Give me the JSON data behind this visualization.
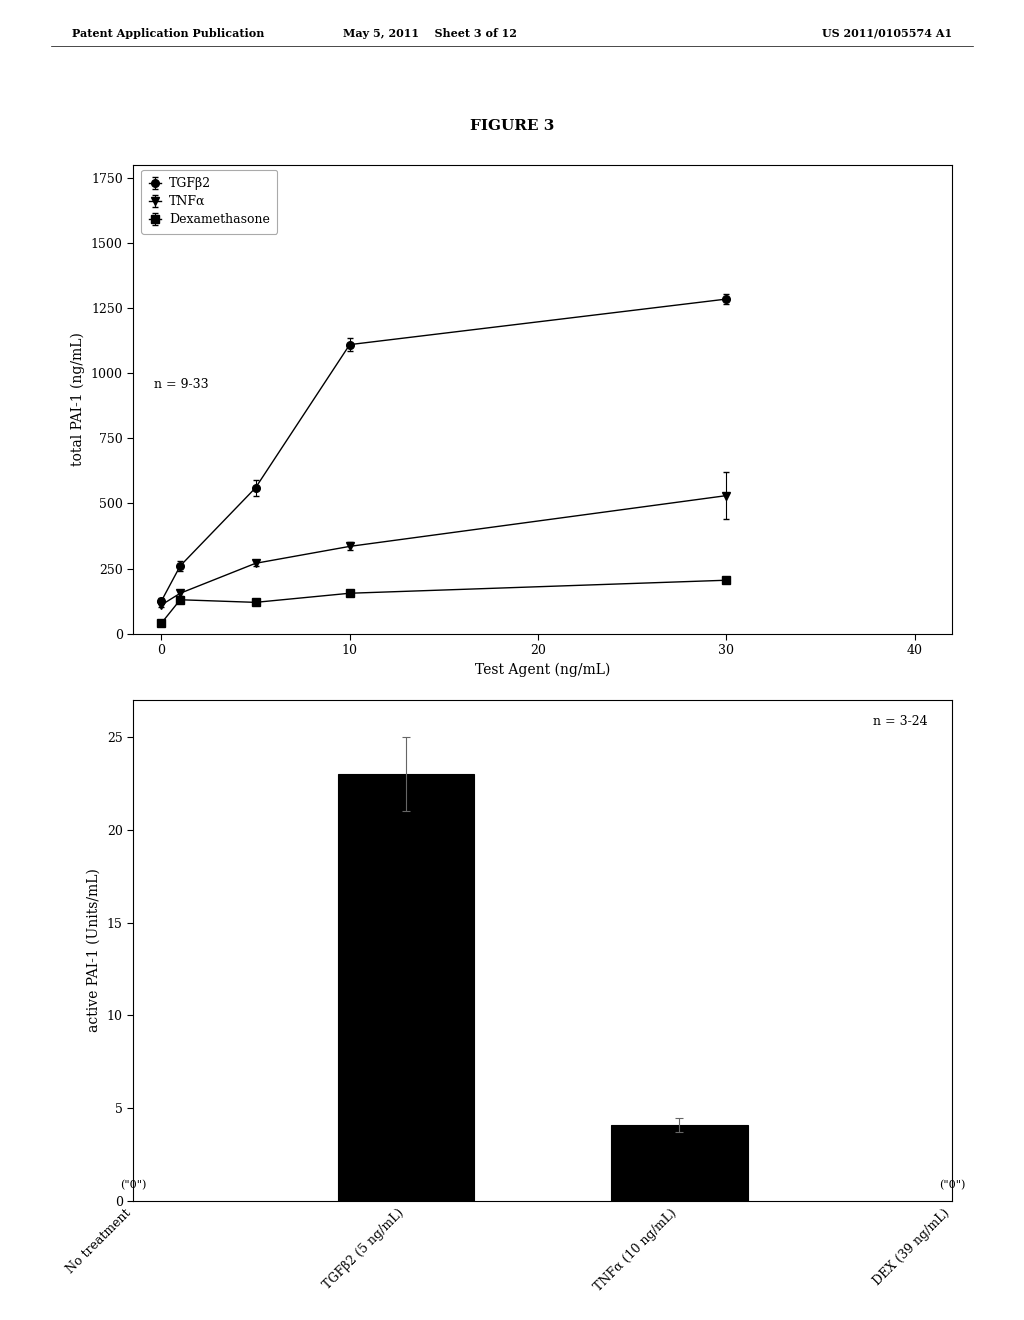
{
  "figure_title": "FIGURE 3",
  "header_left": "Patent Application Publication",
  "header_mid": "May 5, 2011    Sheet 3 of 12",
  "header_right": "US 2011/0105574 A1",
  "line_chart": {
    "xlabel": "Test Agent (ng/mL)",
    "ylabel": "total PAI-1 (ng/mL)",
    "xlim": [
      -1.5,
      42
    ],
    "ylim": [
      0,
      1800
    ],
    "yticks": [
      0,
      250,
      500,
      750,
      1000,
      1250,
      1500,
      1750
    ],
    "xticks": [
      0,
      10,
      20,
      30,
      40
    ],
    "annotation": "n = 9-33",
    "series": {
      "TGFβ2": {
        "x": [
          0,
          1,
          5,
          10,
          30
        ],
        "y": [
          125,
          260,
          560,
          1110,
          1285
        ],
        "yerr": [
          10,
          20,
          30,
          25,
          18
        ],
        "marker": "o",
        "label": "TGFβ2"
      },
      "TNFα": {
        "x": [
          0,
          1,
          5,
          10,
          30
        ],
        "y": [
          110,
          155,
          270,
          335,
          530
        ],
        "yerr": [
          8,
          10,
          12,
          15,
          90
        ],
        "marker": "v",
        "label": "TNFα"
      },
      "Dexamethasone": {
        "x": [
          0,
          1,
          5,
          10,
          30
        ],
        "y": [
          40,
          130,
          120,
          155,
          205
        ],
        "yerr": [
          5,
          8,
          8,
          10,
          10
        ],
        "marker": "s",
        "label": "Dexamethasone"
      }
    }
  },
  "bar_chart": {
    "xlabel": "",
    "ylabel": "active PAI-1 (Units/mL)",
    "ylim": [
      0,
      27
    ],
    "yticks": [
      0,
      5,
      10,
      15,
      20,
      25
    ],
    "annotation": "n = 3-24",
    "categories": [
      "No treatment",
      "TGFβ2 (5 ng/mL)",
      "TNFα (10 ng/mL)",
      "DEX (39 ng/mL)"
    ],
    "values": [
      0,
      23,
      4.1,
      0
    ],
    "errors": [
      0,
      2.0,
      0.4,
      0
    ],
    "zero_labels": [
      "(\"0\")",
      null,
      null,
      "(\"0\")"
    ],
    "bar_color": "#000000",
    "bar_width": 0.5
  },
  "background_color": "#ffffff",
  "text_color": "#000000",
  "title_fontsize": 11,
  "axis_label_fontsize": 10,
  "tick_fontsize": 9,
  "legend_fontsize": 9,
  "annotation_fontsize": 9
}
